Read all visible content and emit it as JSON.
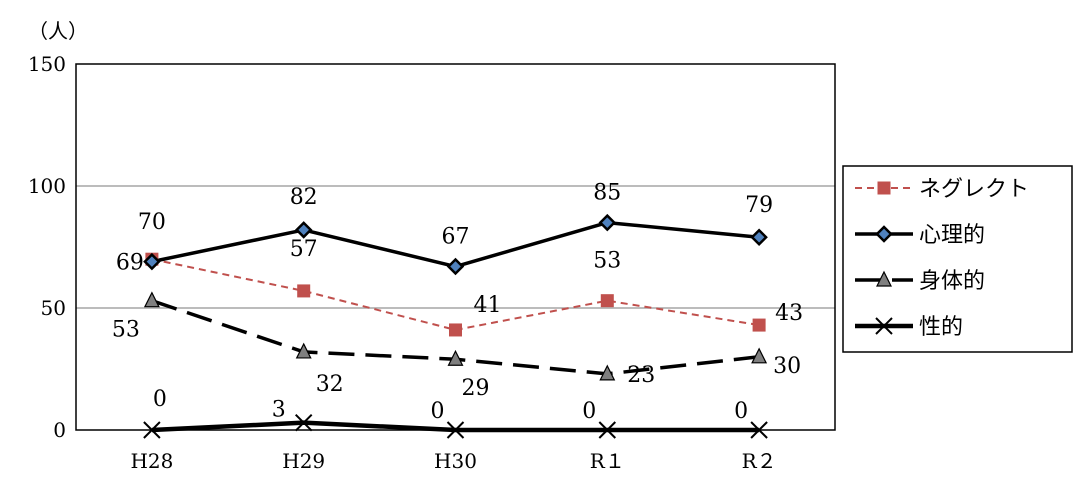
{
  "chart_data": {
    "type": "line",
    "title": "",
    "ylabel": "（人）",
    "xlabel": "",
    "categories": [
      "H28",
      "H29",
      "H30",
      "R１",
      "R２"
    ],
    "ylim": [
      0,
      150
    ],
    "yticks": [
      0,
      50,
      100,
      150
    ],
    "grid": true,
    "legend_placement": "right",
    "series": [
      {
        "name": "ネグレクト",
        "values": [
          70,
          57,
          41,
          53,
          43
        ],
        "color": "#c0504d",
        "marker": "square",
        "line_style": "dashed-thin"
      },
      {
        "name": "心理的",
        "values": [
          69,
          82,
          67,
          85,
          79
        ],
        "color": "#000000",
        "marker_fill": "#4f81bd",
        "marker": "diamond",
        "line_style": "solid"
      },
      {
        "name": "身体的",
        "values": [
          53,
          32,
          29,
          23,
          30
        ],
        "color": "#000000",
        "marker_fill": "#7f7f7f",
        "marker": "triangle",
        "line_style": "dashed-long"
      },
      {
        "name": "性的",
        "values": [
          0,
          3,
          0,
          0,
          0
        ],
        "color": "#000000",
        "marker": "x",
        "line_style": "solid-thick"
      }
    ]
  }
}
